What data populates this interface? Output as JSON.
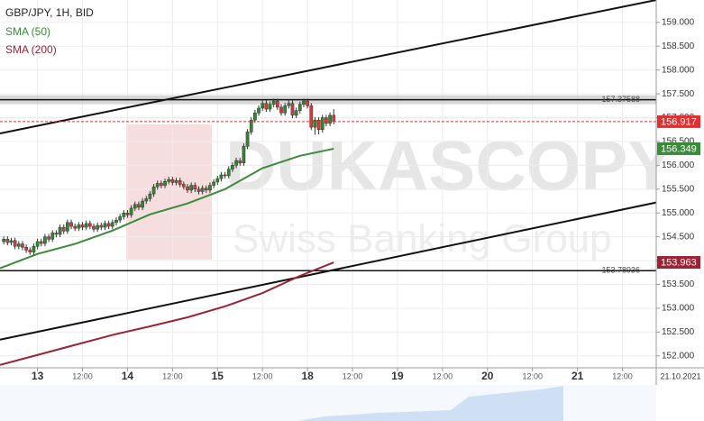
{
  "chart_data": {
    "type": "candlestick",
    "title": "GBP/JPY, 1H, BID",
    "watermark": "DUKASCOPY",
    "watermark_subtitle": "Swiss Banking Group",
    "date_label": "21.10.2021",
    "x": [
      1,
      2,
      3,
      4,
      5,
      6,
      7,
      8,
      9,
      10,
      11,
      12,
      13,
      14,
      15,
      16,
      17,
      18,
      19,
      20,
      21,
      22,
      23,
      24,
      25,
      26,
      27,
      28,
      29,
      30,
      31,
      32,
      33,
      34,
      35,
      36,
      37,
      38,
      39,
      40,
      41,
      42,
      43,
      44,
      45,
      46,
      47,
      48,
      49,
      50,
      51,
      52,
      53,
      54,
      55,
      56,
      57,
      58,
      59,
      60,
      61,
      62,
      63,
      64,
      65,
      66,
      67,
      68,
      69,
      70,
      71,
      72,
      73,
      74,
      75,
      76,
      77,
      78,
      79,
      80,
      81,
      82,
      83,
      84,
      85,
      86,
      87,
      88,
      89
    ],
    "open": [
      154.4,
      154.45,
      154.38,
      154.42,
      154.3,
      154.35,
      154.28,
      154.22,
      154.18,
      154.3,
      154.4,
      154.36,
      154.5,
      154.45,
      154.58,
      154.55,
      154.7,
      154.62,
      154.8,
      154.72,
      154.68,
      154.75,
      154.7,
      154.78,
      154.72,
      154.66,
      154.74,
      154.7,
      154.78,
      154.72,
      154.8,
      154.85,
      154.92,
      155.0,
      154.96,
      155.1,
      155.18,
      155.12,
      155.25,
      155.3,
      155.4,
      155.55,
      155.62,
      155.58,
      155.66,
      155.7,
      155.64,
      155.68,
      155.6,
      155.55,
      155.48,
      155.58,
      155.5,
      155.45,
      155.52,
      155.48,
      155.58,
      155.65,
      155.72,
      155.8,
      155.78,
      155.92,
      156.0,
      156.1,
      156.05,
      156.4,
      156.7,
      156.95,
      157.1,
      157.2,
      157.3,
      157.18,
      157.28,
      157.35,
      157.22,
      157.1,
      157.25,
      157.3,
      157.05,
      157.15,
      157.28,
      157.35,
      157.25,
      156.8,
      156.95,
      156.75,
      157.0,
      156.88,
      157.05
    ],
    "high": [
      154.51,
      154.51,
      154.48,
      154.48,
      154.41,
      154.41,
      154.34,
      154.28,
      154.36,
      154.46,
      154.46,
      154.56,
      154.56,
      154.64,
      154.64,
      154.76,
      154.76,
      154.86,
      154.86,
      154.78,
      154.81,
      154.81,
      154.84,
      154.84,
      154.78,
      154.8,
      154.8,
      154.84,
      154.84,
      154.86,
      154.91,
      154.98,
      155.06,
      155.06,
      155.16,
      155.24,
      155.24,
      155.31,
      155.36,
      155.46,
      155.61,
      155.68,
      155.68,
      155.72,
      155.76,
      155.76,
      155.74,
      155.74,
      155.66,
      155.61,
      155.64,
      155.64,
      155.56,
      155.58,
      155.58,
      155.64,
      155.71,
      155.78,
      155.86,
      155.86,
      155.98,
      156.06,
      156.16,
      156.16,
      156.46,
      156.76,
      157.01,
      157.16,
      157.26,
      157.38,
      157.36,
      157.34,
      157.4,
      157.4,
      157.28,
      157.31,
      157.36,
      157.36,
      157.21,
      157.34,
      157.4,
      157.4,
      157.31,
      157.01,
      157.01,
      157.06,
      157.06,
      157.11,
      157.18
    ],
    "low": [
      154.34,
      154.32,
      154.32,
      154.24,
      154.24,
      154.22,
      154.16,
      154.12,
      154.12,
      154.24,
      154.3,
      154.3,
      154.39,
      154.39,
      154.49,
      154.49,
      154.56,
      154.56,
      154.66,
      154.62,
      154.62,
      154.64,
      154.64,
      154.66,
      154.6,
      154.6,
      154.64,
      154.64,
      154.66,
      154.66,
      154.74,
      154.79,
      154.86,
      154.9,
      154.9,
      155.04,
      155.06,
      155.06,
      155.19,
      155.24,
      155.34,
      155.49,
      155.52,
      155.52,
      155.6,
      155.58,
      155.58,
      155.54,
      155.49,
      155.42,
      155.42,
      155.44,
      155.39,
      155.39,
      155.42,
      155.42,
      155.52,
      155.59,
      155.66,
      155.72,
      155.72,
      155.86,
      155.94,
      155.99,
      155.99,
      156.34,
      156.64,
      156.89,
      157.04,
      157.14,
      157.12,
      157.12,
      157.22,
      157.16,
      157.04,
      157.04,
      157.19,
      156.99,
      156.99,
      157.09,
      157.22,
      157.19,
      156.74,
      156.64,
      156.65,
      156.69,
      156.82,
      156.82,
      156.86
    ],
    "close": [
      154.45,
      154.38,
      154.42,
      154.3,
      154.35,
      154.28,
      154.22,
      154.18,
      154.3,
      154.4,
      154.36,
      154.5,
      154.45,
      154.58,
      154.55,
      154.7,
      154.62,
      154.8,
      154.72,
      154.68,
      154.75,
      154.7,
      154.78,
      154.72,
      154.66,
      154.74,
      154.7,
      154.78,
      154.72,
      154.8,
      154.85,
      154.92,
      155.0,
      154.96,
      155.1,
      155.18,
      155.12,
      155.25,
      155.3,
      155.4,
      155.55,
      155.62,
      155.58,
      155.66,
      155.7,
      155.64,
      155.68,
      155.6,
      155.55,
      155.48,
      155.58,
      155.5,
      155.45,
      155.52,
      155.48,
      155.58,
      155.65,
      155.72,
      155.8,
      155.78,
      155.92,
      156.0,
      156.1,
      156.05,
      156.4,
      156.7,
      156.95,
      157.1,
      157.2,
      157.3,
      157.18,
      157.28,
      157.35,
      157.22,
      157.1,
      157.25,
      157.3,
      157.05,
      157.15,
      157.28,
      157.35,
      157.25,
      156.8,
      156.95,
      156.75,
      157.0,
      156.88,
      157.05,
      156.917
    ],
    "up_color": "#2f8a2f",
    "down_color": "#d23c3c",
    "xlim": [
      0,
      175
    ],
    "xticks": [
      {
        "value": 10,
        "label": "13"
      },
      {
        "value": 22,
        "label": "12:00"
      },
      {
        "value": 34,
        "label": "14"
      },
      {
        "value": 46,
        "label": "12:00"
      },
      {
        "value": 58,
        "label": "15"
      },
      {
        "value": 70,
        "label": "12:00"
      },
      {
        "value": 82,
        "label": "18"
      },
      {
        "value": 94,
        "label": "12:00"
      },
      {
        "value": 106,
        "label": "19"
      },
      {
        "value": 118,
        "label": "12:00"
      },
      {
        "value": 130,
        "label": "20"
      },
      {
        "value": 142,
        "label": "12:00"
      },
      {
        "value": 154,
        "label": "21"
      },
      {
        "value": 166,
        "label": "12:00"
      }
    ],
    "ylim": [
      151.75,
      159.47
    ],
    "yticks": [
      {
        "value": 152,
        "label": "152.000"
      },
      {
        "value": 152.5,
        "label": "152.500"
      },
      {
        "value": 153,
        "label": "153.000"
      },
      {
        "value": 153.5,
        "label": "153.500"
      },
      {
        "value": 154,
        "label": "154.000"
      },
      {
        "value": 154.5,
        "label": "154.500"
      },
      {
        "value": 155,
        "label": "155.000"
      },
      {
        "value": 155.5,
        "label": "155.500"
      },
      {
        "value": 156,
        "label": "156.000"
      },
      {
        "value": 156.5,
        "label": "156.500"
      },
      {
        "value": 157,
        "label": "157.000"
      },
      {
        "value": 157.5,
        "label": "157.500"
      },
      {
        "value": 158,
        "label": "158.000"
      },
      {
        "value": 158.5,
        "label": "158.500"
      },
      {
        "value": 159,
        "label": "159.000"
      }
    ],
    "grid": true,
    "series": [
      {
        "name": "SMA (50)",
        "color": "#3a8a3a",
        "x": [
          0,
          10,
          20,
          30,
          40,
          50,
          60,
          70,
          80,
          89
        ],
        "values": [
          153.84,
          154.14,
          154.35,
          154.63,
          154.97,
          155.2,
          155.5,
          155.94,
          156.2,
          156.349
        ]
      },
      {
        "name": "SMA (200)",
        "color": "#9b2335",
        "x": [
          0,
          10,
          20,
          30,
          40,
          50,
          60,
          70,
          80,
          89
        ],
        "values": [
          151.81,
          152.02,
          152.23,
          152.44,
          152.62,
          152.81,
          153.04,
          153.32,
          153.68,
          153.963
        ]
      }
    ],
    "trend_lines": [
      {
        "x": [
          0,
          175
        ],
        "y": [
          156.67,
          159.47
        ]
      },
      {
        "x": [
          0,
          175
        ],
        "y": [
          152.34,
          155.22
        ]
      }
    ],
    "levels": [
      157.37588,
      153.78936
    ],
    "last_price": 156.917,
    "last_price_color": "#e03030"
  }
}
